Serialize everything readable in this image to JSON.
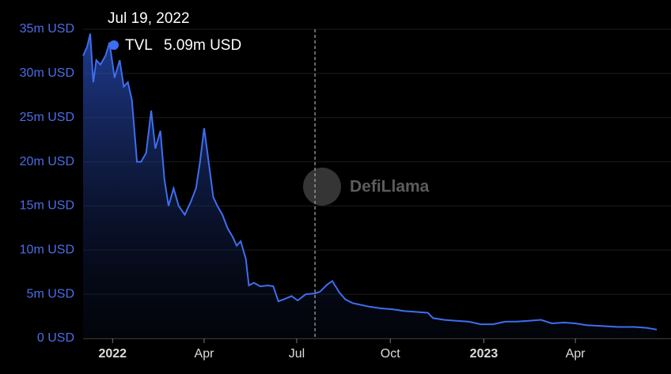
{
  "chart_data": {
    "type": "area",
    "x": [
      "2021-12-03",
      "2021-12-07",
      "2021-12-10",
      "2021-12-13",
      "2021-12-16",
      "2021-12-20",
      "2021-12-25",
      "2021-12-29",
      "2022-01-03",
      "2022-01-08",
      "2022-01-12",
      "2022-01-16",
      "2022-01-20",
      "2022-01-25",
      "2022-01-29",
      "2022-02-03",
      "2022-02-08",
      "2022-02-12",
      "2022-02-17",
      "2022-02-21",
      "2022-02-25",
      "2022-03-02",
      "2022-03-07",
      "2022-03-13",
      "2022-03-19",
      "2022-03-24",
      "2022-03-28",
      "2022-04-01",
      "2022-04-06",
      "2022-04-10",
      "2022-04-14",
      "2022-04-19",
      "2022-04-24",
      "2022-04-29",
      "2022-05-03",
      "2022-05-07",
      "2022-05-12",
      "2022-05-15",
      "2022-05-20",
      "2022-05-26",
      "2022-06-03",
      "2022-06-08",
      "2022-06-13",
      "2022-06-20",
      "2022-06-26",
      "2022-07-02",
      "2022-07-10",
      "2022-07-19",
      "2022-07-24",
      "2022-07-31",
      "2022-08-05",
      "2022-08-12",
      "2022-08-18",
      "2022-08-25",
      "2022-09-02",
      "2022-09-10",
      "2022-09-22",
      "2022-10-03",
      "2022-10-15",
      "2022-10-27",
      "2022-11-07",
      "2022-11-12",
      "2022-11-23",
      "2022-12-05",
      "2022-12-17",
      "2022-12-29",
      "2023-01-10",
      "2023-01-22",
      "2023-02-02",
      "2023-02-14",
      "2023-02-26",
      "2023-03-09",
      "2023-03-21",
      "2023-04-01",
      "2023-04-12",
      "2023-04-28",
      "2023-05-13",
      "2023-05-29",
      "2023-06-10",
      "2023-06-20"
    ],
    "series": [
      {
        "name": "TVL",
        "color": "#3e6ef0",
        "values": [
          32000000,
          33000000,
          34500000,
          29000000,
          31500000,
          31000000,
          32000000,
          33500000,
          29500000,
          31500000,
          28500000,
          29000000,
          27000000,
          20000000,
          20000000,
          21000000,
          25800000,
          21500000,
          23500000,
          18000000,
          15000000,
          17000000,
          15000000,
          14000000,
          15500000,
          17000000,
          20000000,
          23800000,
          19500000,
          16000000,
          15000000,
          14000000,
          12500000,
          11500000,
          10500000,
          11000000,
          9000000,
          6000000,
          6300000,
          5900000,
          6000000,
          5900000,
          4200000,
          4500000,
          4800000,
          4300000,
          5000000,
          5090000,
          5300000,
          6100000,
          6500000,
          5200000,
          4400000,
          4000000,
          3800000,
          3600000,
          3400000,
          3300000,
          3100000,
          3000000,
          2900000,
          2300000,
          2100000,
          2000000,
          1900000,
          1600000,
          1600000,
          1900000,
          1900000,
          2000000,
          2100000,
          1700000,
          1800000,
          1700000,
          1500000,
          1400000,
          1300000,
          1300000,
          1200000,
          1000000
        ]
      }
    ],
    "xlim": [
      "2021-12-03",
      "2023-06-20"
    ],
    "xticks": [
      {
        "value": "2022-01-01",
        "label": "2022"
      },
      {
        "value": "2022-04-01",
        "label": "Apr"
      },
      {
        "value": "2022-07-01",
        "label": "Jul"
      },
      {
        "value": "2022-10-01",
        "label": "Oct"
      },
      {
        "value": "2023-01-01",
        "label": "2023"
      },
      {
        "value": "2023-04-01",
        "label": "Apr"
      }
    ],
    "ylim": [
      0,
      35000000
    ],
    "yticks": [
      {
        "value": 0,
        "label": "0 USD"
      },
      {
        "value": 5000000,
        "label": "5m USD"
      },
      {
        "value": 10000000,
        "label": "10m USD"
      },
      {
        "value": 15000000,
        "label": "15m USD"
      },
      {
        "value": 20000000,
        "label": "20m USD"
      },
      {
        "value": 25000000,
        "label": "25m USD"
      },
      {
        "value": 30000000,
        "label": "30m USD"
      },
      {
        "value": 35000000,
        "label": "35m USD"
      }
    ],
    "grid": true,
    "watermark": "DefiLlama",
    "tooltip": {
      "x": "2022-07-19",
      "date": "Jul 19, 2022",
      "value": 5090000,
      "value_label": "5.09m USD"
    }
  }
}
